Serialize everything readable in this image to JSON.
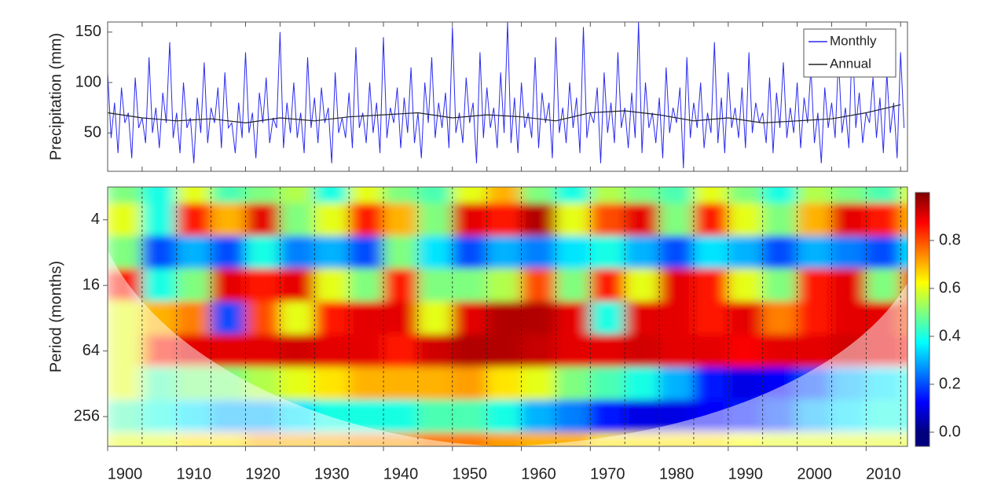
{
  "chart_data": [
    {
      "type": "line",
      "ylabel": "Precipitation (mm)",
      "xlim": [
        1900,
        2016
      ],
      "ylim": [
        12,
        160
      ],
      "yticks": [
        50,
        100,
        150
      ],
      "legend": "top-right",
      "series": [
        {
          "name": "Monthly",
          "color": "#2a2af0",
          "x": [
            1900,
            1900.5,
            1901,
            1901.5,
            1902,
            1902.5,
            1903,
            1903.5,
            1904,
            1904.5,
            1905,
            1905.5,
            1906,
            1906.5,
            1907,
            1907.5,
            1908,
            1908.5,
            1909,
            1909.5,
            1910,
            1910.5,
            1911,
            1911.5,
            1912,
            1912.5,
            1913,
            1913.5,
            1914,
            1914.5,
            1915,
            1915.5,
            1916,
            1916.5,
            1917,
            1917.5,
            1918,
            1918.5,
            1919,
            1919.5,
            1920,
            1920.5,
            1921,
            1921.5,
            1922,
            1922.5,
            1923,
            1923.5,
            1924,
            1924.5,
            1925,
            1925.5,
            1926,
            1926.5,
            1927,
            1927.5,
            1928,
            1928.5,
            1929,
            1929.5,
            1930,
            1930.5,
            1931,
            1931.5,
            1932,
            1932.5,
            1933,
            1933.5,
            1934,
            1934.5,
            1935,
            1935.5,
            1936,
            1936.5,
            1937,
            1937.5,
            1938,
            1938.5,
            1939,
            1939.5,
            1940,
            1940.5,
            1941,
            1941.5,
            1942,
            1942.5,
            1943,
            1943.5,
            1944,
            1944.5,
            1945,
            1945.5,
            1946,
            1946.5,
            1947,
            1947.5,
            1948,
            1948.5,
            1949,
            1949.5,
            1950,
            1950.5,
            1951,
            1951.5,
            1952,
            1952.5,
            1953,
            1953.5,
            1954,
            1954.5,
            1955,
            1955.5,
            1956,
            1956.5,
            1957,
            1957.5,
            1958,
            1958.5,
            1959,
            1959.5,
            1960,
            1960.5,
            1961,
            1961.5,
            1962,
            1962.5,
            1963,
            1963.5,
            1964,
            1964.5,
            1965,
            1965.5,
            1966,
            1966.5,
            1967,
            1967.5,
            1968,
            1968.5,
            1969,
            1969.5,
            1970,
            1970.5,
            1971,
            1971.5,
            1972,
            1972.5,
            1973,
            1973.5,
            1974,
            1974.5,
            1975,
            1975.5,
            1976,
            1976.5,
            1977,
            1977.5,
            1978,
            1978.5,
            1979,
            1979.5,
            1980,
            1980.5,
            1981,
            1981.5,
            1982,
            1982.5,
            1983,
            1983.5,
            1984,
            1984.5,
            1985,
            1985.5,
            1986,
            1986.5,
            1987,
            1987.5,
            1988,
            1988.5,
            1989,
            1989.5,
            1990,
            1990.5,
            1991,
            1991.5,
            1992,
            1992.5,
            1993,
            1993.5,
            1994,
            1994.5,
            1995,
            1995.5,
            1996,
            1996.5,
            1997,
            1997.5,
            1998,
            1998.5,
            1999,
            1999.5,
            2000,
            2000.5,
            2001,
            2001.5,
            2002,
            2002.5,
            2003,
            2003.5,
            2004,
            2004.5,
            2005,
            2005.5,
            2006,
            2006.5,
            2007,
            2007.5,
            2008,
            2008.5,
            2009,
            2009.5,
            2010,
            2010.5,
            2011,
            2011.5,
            2012,
            2012.5,
            2013,
            2013.5,
            2014,
            2014.5,
            2015,
            2015.5
          ],
          "values": [
            110,
            45,
            80,
            30,
            95,
            60,
            70,
            25,
            105,
            55,
            65,
            40,
            125,
            50,
            75,
            35,
            90,
            60,
            140,
            45,
            70,
            30,
            100,
            55,
            65,
            20,
            85,
            50,
            120,
            40,
            75,
            60,
            95,
            35,
            110,
            55,
            60,
            30,
            80,
            45,
            130,
            50,
            70,
            25,
            90,
            60,
            105,
            40,
            65,
            55,
            150,
            35,
            80,
            50,
            100,
            45,
            70,
            30,
            125,
            55,
            85,
            40,
            95,
            60,
            75,
            20,
            110,
            50,
            65,
            45,
            90,
            35,
            135,
            55,
            70,
            40,
            100,
            50,
            80,
            30,
            145,
            45,
            75,
            60,
            95,
            35,
            85,
            50,
            115,
            40,
            70,
            25,
            100,
            60,
            125,
            45,
            80,
            55,
            90,
            35,
            155,
            50,
            70,
            40,
            105,
            60,
            80,
            20,
            130,
            45,
            95,
            55,
            75,
            35,
            110,
            50,
            160,
            40,
            85,
            30,
            100,
            55,
            70,
            45,
            125,
            35,
            90,
            60,
            80,
            25,
            145,
            50,
            75,
            40,
            100,
            55,
            85,
            30,
            155,
            45,
            70,
            60,
            95,
            20,
            110,
            50,
            80,
            40,
            130,
            55,
            75,
            35,
            90,
            45,
            160,
            30,
            100,
            55,
            70,
            40,
            85,
            25,
            115,
            50,
            75,
            60,
            95,
            15,
            125,
            45,
            80,
            55,
            100,
            35,
            70,
            50,
            140,
            40,
            85,
            30,
            110,
            55,
            75,
            45,
            95,
            35,
            130,
            50,
            80,
            60,
            70,
            40,
            105,
            30,
            90,
            55,
            120,
            45,
            75,
            50,
            100,
            35,
            85,
            60,
            115,
            40,
            70,
            20,
            95,
            55,
            80,
            45,
            125,
            50,
            75,
            35,
            150,
            55,
            90,
            40,
            70,
            60,
            105,
            45,
            85,
            30,
            110,
            50,
            80,
            25,
            130,
            55
          ]
        },
        {
          "name": "Annual",
          "color": "#222222",
          "x": [
            1900,
            1905,
            1910,
            1915,
            1920,
            1925,
            1930,
            1935,
            1940,
            1945,
            1950,
            1955,
            1960,
            1965,
            1970,
            1975,
            1980,
            1985,
            1990,
            1995,
            2000,
            2005,
            2010,
            2015
          ],
          "values": [
            70,
            65,
            62,
            64,
            60,
            65,
            62,
            66,
            68,
            70,
            65,
            68,
            66,
            62,
            70,
            72,
            68,
            62,
            65,
            60,
            62,
            64,
            70,
            78
          ]
        }
      ]
    },
    {
      "type": "heatmap",
      "ylabel": "Period (months)",
      "xlim": [
        1900,
        2016
      ],
      "xticks": [
        1900,
        1910,
        1920,
        1930,
        1940,
        1950,
        1960,
        1970,
        1980,
        1990,
        2000,
        2010
      ],
      "xgrid": [
        1905,
        1910,
        1915,
        1920,
        1925,
        1930,
        1935,
        1940,
        1945,
        1950,
        1955,
        1960,
        1965,
        1970,
        1975,
        1980,
        1985,
        1990,
        1995,
        2000,
        2005,
        2010,
        2015
      ],
      "ylim": [
        2,
        480
      ],
      "log_scale_y": true,
      "reverse_y": true,
      "yticks": [
        4,
        16,
        64,
        256
      ],
      "x_bins": [
        1900,
        1905,
        1910,
        1915,
        1920,
        1925,
        1930,
        1935,
        1940,
        1945,
        1950,
        1955,
        1960,
        1965,
        1970,
        1975,
        1980,
        1985,
        1990,
        1995,
        2000,
        2005,
        2010,
        2015,
        2020
      ],
      "periods": [
        2,
        4,
        8,
        16,
        32,
        64,
        128,
        256,
        512
      ],
      "z": [
        [
          0.5,
          0.4,
          0.6,
          0.45,
          0.5,
          0.55,
          0.4,
          0.6,
          0.5,
          0.45,
          0.6,
          0.7,
          0.5,
          0.4,
          0.55,
          0.5,
          0.45,
          0.6,
          0.5,
          0.4,
          0.55,
          0.5,
          0.45,
          0.6
        ],
        [
          0.6,
          0.4,
          0.85,
          0.7,
          0.9,
          0.5,
          0.6,
          0.85,
          0.7,
          0.5,
          0.9,
          0.85,
          0.95,
          0.6,
          0.8,
          0.9,
          0.5,
          0.85,
          0.6,
          0.5,
          0.7,
          0.9,
          0.85,
          0.7
        ],
        [
          0.5,
          0.2,
          0.3,
          0.2,
          0.4,
          0.25,
          0.3,
          0.2,
          0.5,
          0.35,
          0.2,
          0.3,
          0.25,
          0.35,
          0.4,
          0.3,
          0.2,
          0.35,
          0.3,
          0.2,
          0.3,
          0.25,
          0.2,
          0.35
        ],
        [
          0.85,
          0.4,
          0.5,
          0.9,
          0.85,
          0.9,
          0.6,
          0.5,
          0.85,
          0.5,
          0.5,
          0.55,
          0.8,
          0.5,
          0.85,
          0.6,
          0.9,
          0.85,
          0.6,
          0.5,
          0.85,
          0.9,
          0.5,
          0.8
        ],
        [
          0.6,
          0.7,
          0.75,
          0.2,
          0.8,
          0.6,
          0.85,
          0.9,
          0.9,
          0.6,
          0.9,
          0.95,
          0.95,
          0.9,
          0.4,
          0.9,
          0.9,
          0.85,
          0.9,
          0.75,
          0.85,
          0.9,
          0.9,
          0.8
        ],
        [
          0.6,
          0.85,
          0.9,
          0.9,
          0.9,
          0.92,
          0.9,
          0.9,
          0.85,
          0.92,
          0.95,
          0.95,
          0.93,
          0.9,
          0.9,
          0.92,
          0.9,
          0.9,
          0.88,
          0.9,
          0.9,
          0.92,
          0.9,
          0.85
        ],
        [
          0.6,
          0.45,
          0.5,
          0.5,
          0.55,
          0.6,
          0.65,
          0.7,
          0.7,
          0.7,
          0.72,
          0.65,
          0.6,
          0.5,
          0.45,
          0.4,
          0.3,
          0.15,
          0.1,
          0.12,
          0.2,
          0.3,
          0.35,
          0.4
        ],
        [
          0.45,
          0.4,
          0.35,
          0.3,
          0.3,
          0.35,
          0.4,
          0.4,
          0.4,
          0.45,
          0.45,
          0.4,
          0.3,
          0.25,
          0.15,
          0.1,
          0.1,
          0.12,
          0.15,
          0.2,
          0.3,
          0.35,
          0.4,
          0.4
        ],
        [
          0.6,
          0.6,
          0.65,
          0.65,
          0.7,
          0.7,
          0.7,
          0.72,
          0.72,
          0.75,
          0.75,
          0.72,
          0.7,
          0.7,
          0.65,
          0.65,
          0.65,
          0.65,
          0.62,
          0.6,
          0.6,
          0.6,
          0.6,
          0.6
        ]
      ],
      "zlim": [
        0,
        1
      ],
      "colormap": [
        "#00007f",
        "#0000ff",
        "#007fff",
        "#00ffff",
        "#7fff7f",
        "#ffff00",
        "#ff7f00",
        "#ff0000",
        "#7f0000"
      ],
      "colorbar_ticks": [
        {
          "value": 0,
          "label": "0.0"
        },
        0.2,
        0.4,
        0.6,
        0.8
      ]
    }
  ]
}
